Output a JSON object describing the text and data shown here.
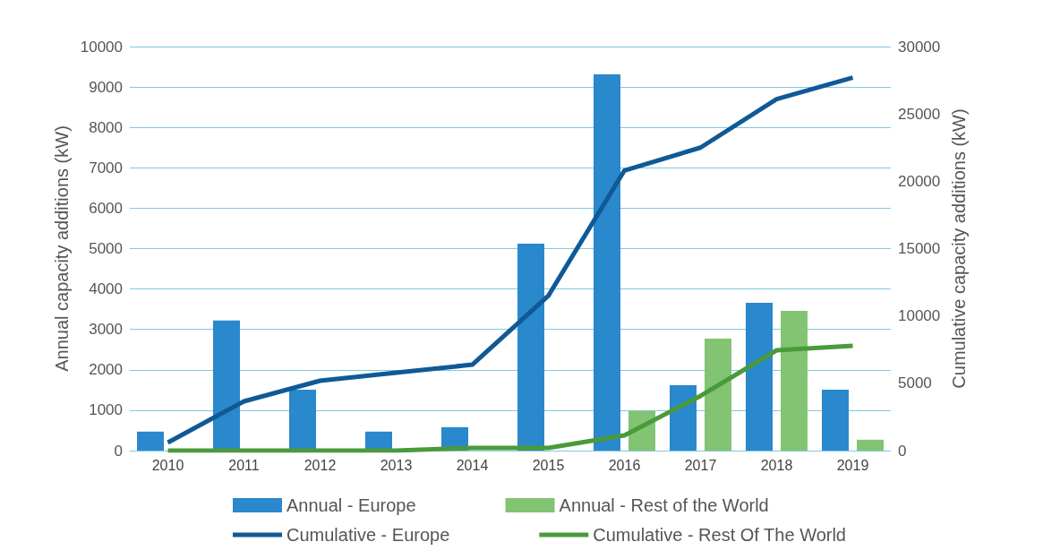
{
  "chart_data": {
    "type": "bar",
    "ylabel": "Annual capacity additions (kW)",
    "y2label": "Cumulative capacity additions (kW)",
    "categories": [
      "2010",
      "2011",
      "2012",
      "2013",
      "2014",
      "2015",
      "2016",
      "2017",
      "2018",
      "2019"
    ],
    "series": [
      {
        "name": "Annual - Europe",
        "color": "#2a88cc",
        "values": [
          470,
          3220,
          1510,
          470,
          580,
          5120,
          9310,
          1620,
          3660,
          1510
        ]
      },
      {
        "name": "Annual - Rest of the World",
        "color": "#82c472",
        "values": [
          0,
          0,
          0,
          0,
          0,
          0,
          980,
          2770,
          3460,
          270
        ]
      },
      {
        "name": "Cumulative - Europe",
        "type": "line",
        "axis": "y2",
        "color": "#0f5a96",
        "values": [
          600,
          3660,
          5190,
          5790,
          6380,
          11500,
          20800,
          22500,
          26100,
          27700
        ]
      },
      {
        "name": "Cumulative - Rest Of The World",
        "type": "line",
        "axis": "y2",
        "color": "#4a9a3c",
        "values": [
          0,
          0,
          0,
          0,
          200,
          200,
          1130,
          4060,
          7450,
          7780
        ]
      }
    ],
    "ylim": [
      0,
      10000
    ],
    "yticks": [
      0,
      1000,
      2000,
      3000,
      4000,
      5000,
      6000,
      7000,
      8000,
      9000,
      10000
    ],
    "y2lim": [
      0,
      30000
    ],
    "y2ticks": [
      0,
      5000,
      10000,
      15000,
      20000,
      25000,
      30000
    ],
    "grid": "y",
    "legend": "bottom",
    "marker": "none",
    "line_style": "solid"
  }
}
